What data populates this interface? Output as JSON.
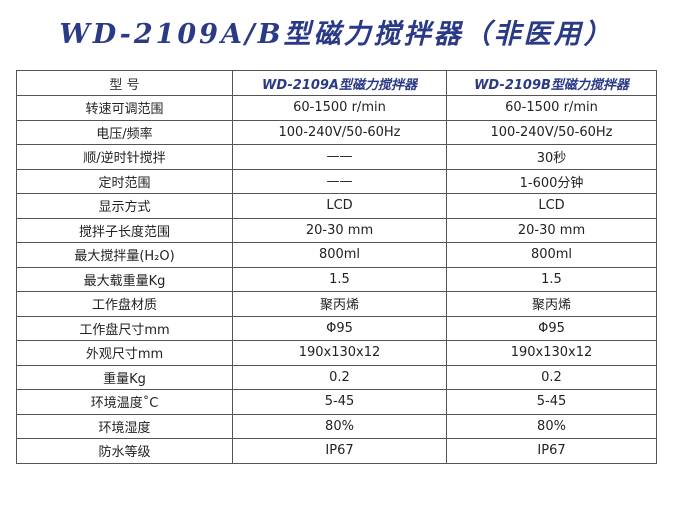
{
  "title": "WD-2109A/B型磁力搅拌器（非医用）",
  "table": {
    "headers": [
      "型 号",
      "WD-2109A型磁力搅拌器",
      "WD-2109B型磁力搅拌器"
    ],
    "rows": [
      [
        "转速可调范围",
        "60-1500 r/min",
        "60-1500 r/min"
      ],
      [
        "电压/频率",
        "100-240V/50-60Hz",
        "100-240V/50-60Hz"
      ],
      [
        "顺/逆时针搅拌",
        "——",
        "30秒"
      ],
      [
        "定时范围",
        "——",
        "1-600分钟"
      ],
      [
        "显示方式",
        "LCD",
        "LCD"
      ],
      [
        "搅拌子长度范围",
        "20-30 mm",
        "20-30 mm"
      ],
      [
        "最大搅拌量(H₂O)",
        "800ml",
        "800ml"
      ],
      [
        "最大载重量Kg",
        "1.5",
        "1.5"
      ],
      [
        "工作盘材质",
        "聚丙烯",
        "聚丙烯"
      ],
      [
        "工作盘尺寸mm",
        "Φ95",
        "Φ95"
      ],
      [
        "外观尺寸mm",
        "190x130x12",
        "190x130x12"
      ],
      [
        "重量Kg",
        "0.2",
        "0.2"
      ],
      [
        "环境温度˚C",
        "5-45",
        "5-45"
      ],
      [
        "环境湿度",
        "80%",
        "80%"
      ],
      [
        "防水等级",
        "IP67",
        "IP67"
      ]
    ]
  }
}
